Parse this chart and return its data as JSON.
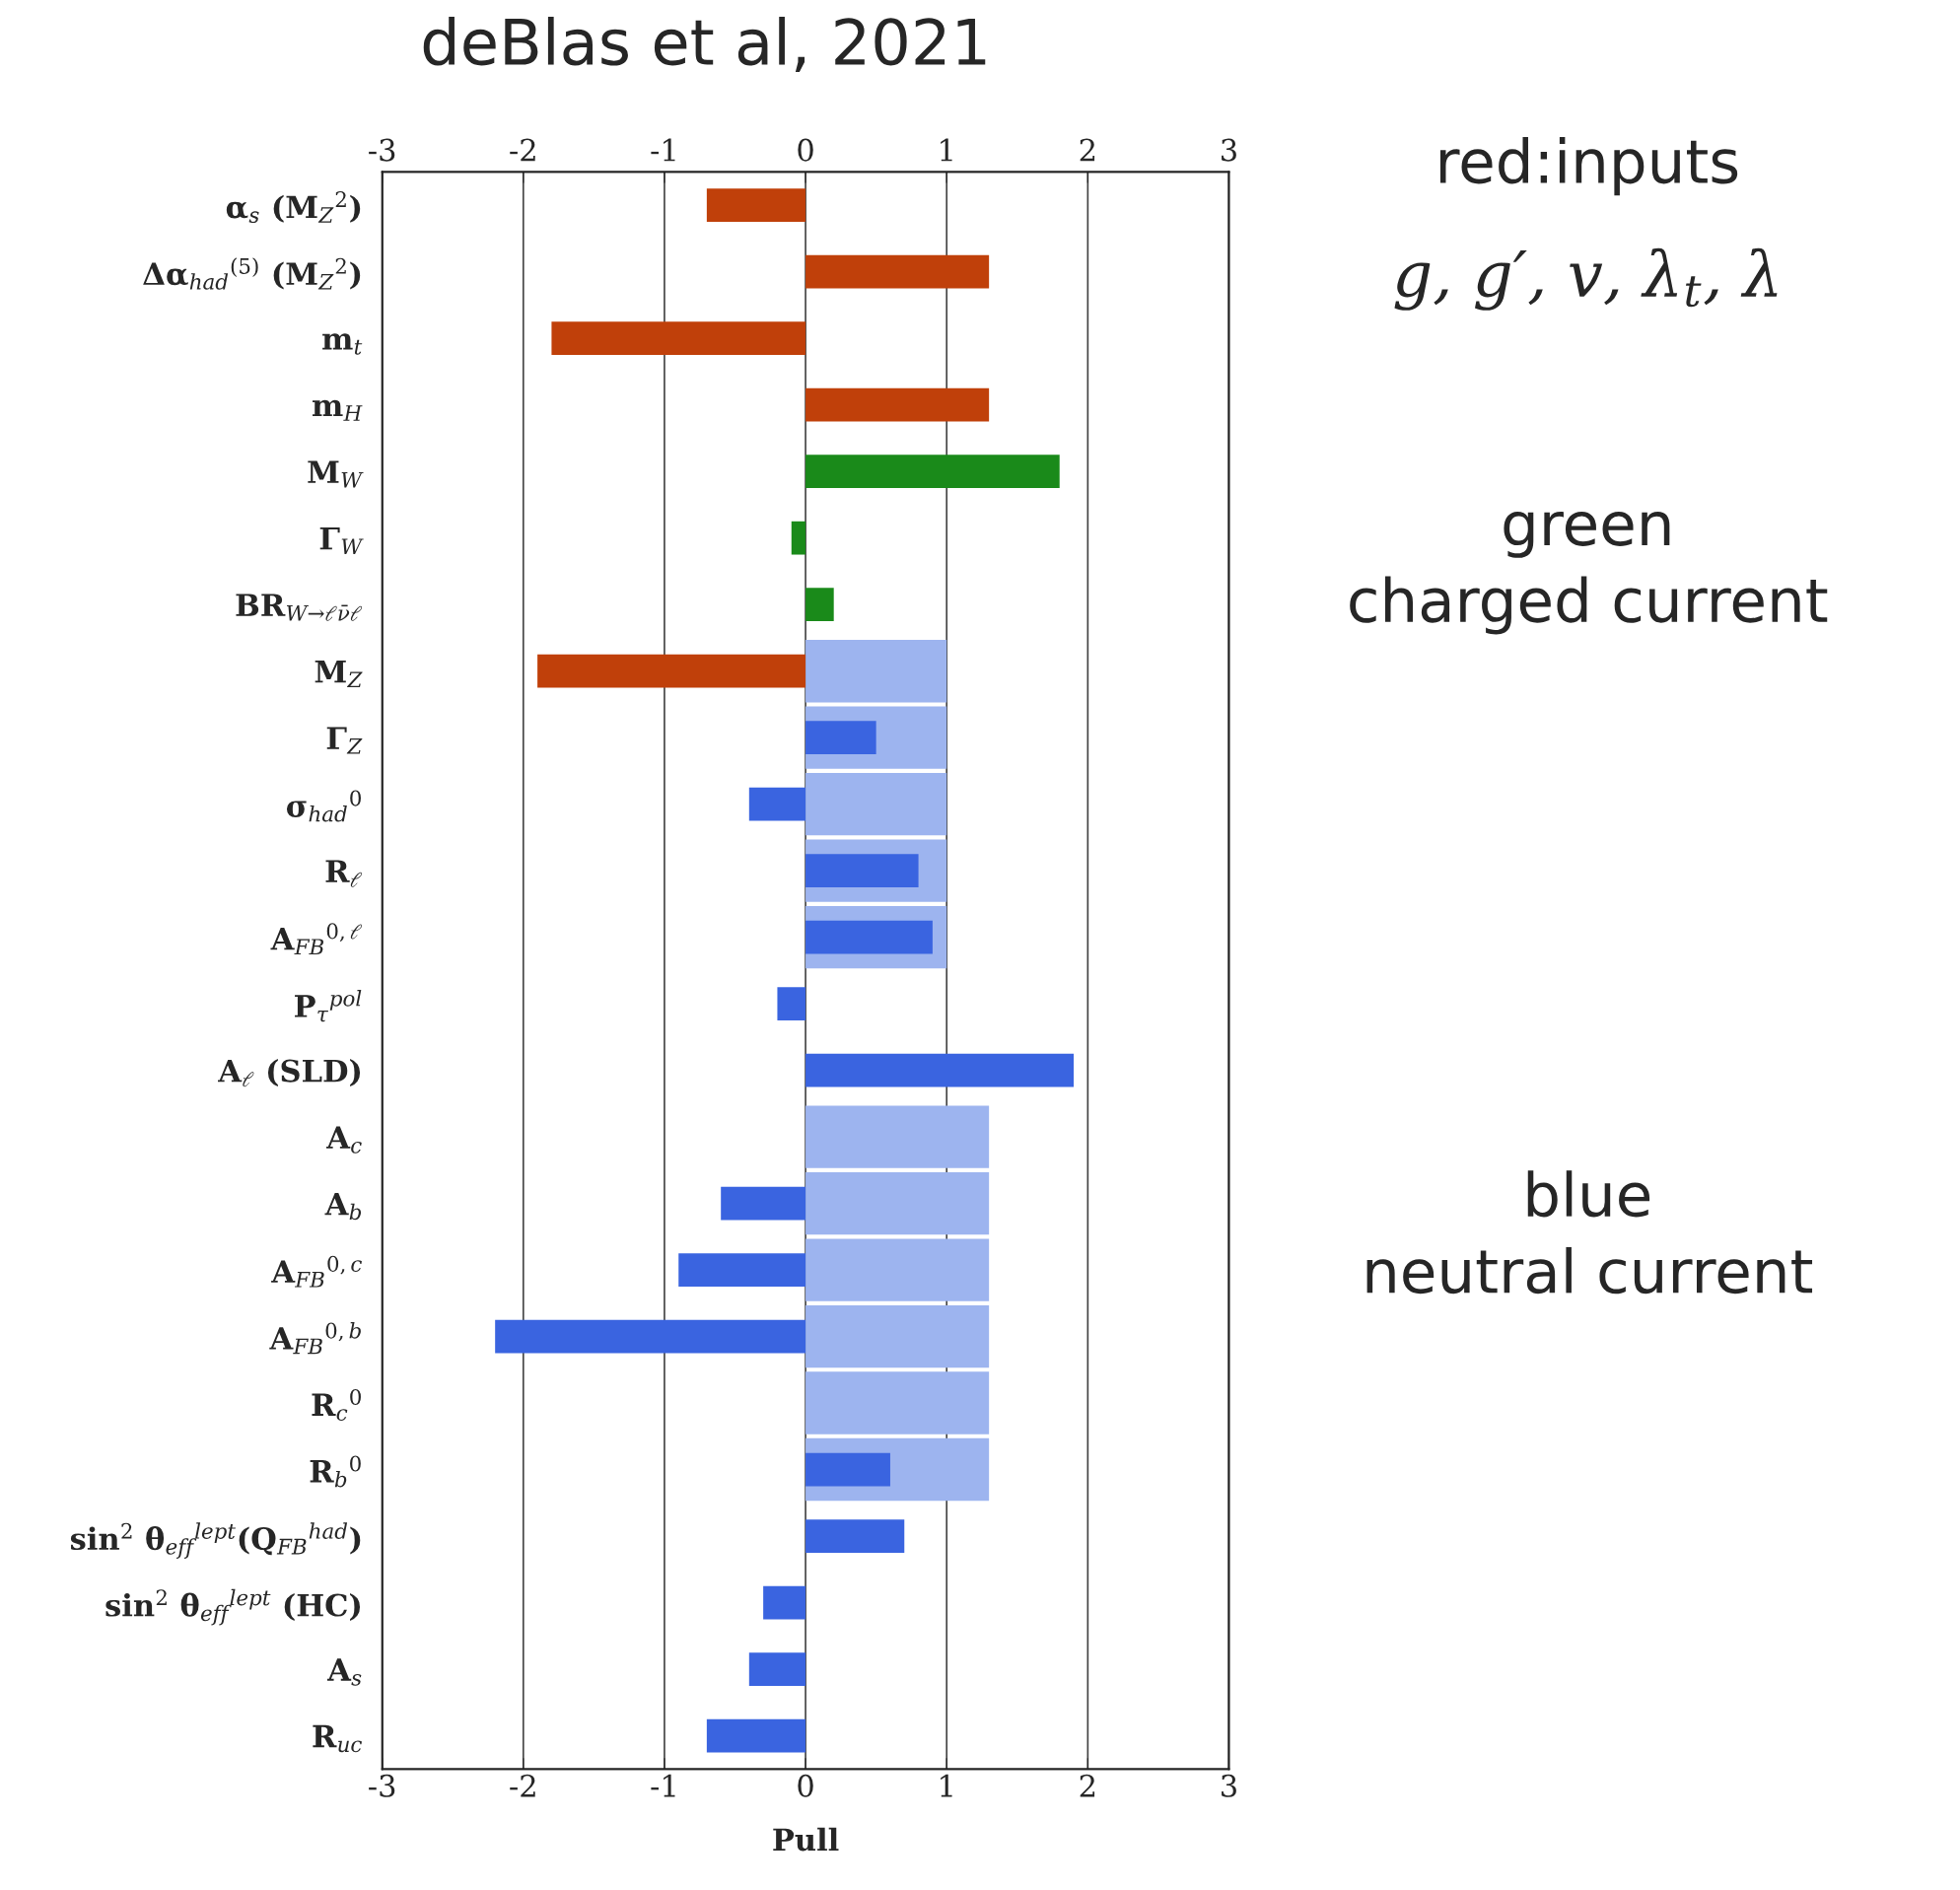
{
  "chart_data": {
    "type": "bar",
    "orientation": "horizontal",
    "title": "deBlas et al, 2021",
    "xlabel": "Pull",
    "categories": [
      "α$_{s}$ (M$_{Z}$$^{2}$)",
      "Δα$_{had}$$^{(5)}$ (M$_{Z}$$^{2}$)",
      "m$_{t}$",
      "m$_{H}$",
      "M$_{W}$",
      "Γ$_{W}$",
      "BR$_{W→ℓν̄ℓ}$",
      "M$_{Z}$",
      "Γ$_{Z}$",
      "σ$_{had}$$^{0}$",
      "R$_{ℓ}$",
      "A$_{FB}$$^{0,ℓ}$",
      "P$_{τ}$$^{pol}$",
      "A$_{ℓ}$ (SLD)",
      "A$_{c}$",
      "A$_{b}$",
      "A$_{FB}$$^{0,c}$",
      "A$_{FB}$$^{0,b}$",
      "R$_{c}$$^{0}$",
      "R$_{b}$$^{0}$",
      "sin$^{2}$ θ$_{eff}$$^{lept}$(Q$_{FB}$$^{had}$)",
      "sin$^{2}$ θ$_{eff}$$^{lept}$ (HC)",
      "A$_{s}$",
      "R$_{uc}$"
    ],
    "series": [
      {
        "color": "#9db4ef",
        "values": [
          null,
          null,
          null,
          null,
          null,
          null,
          null,
          1,
          1,
          1,
          1,
          1,
          null,
          null,
          1.3,
          1.3,
          1.3,
          1.3,
          1.3,
          1.3,
          null,
          null,
          null,
          null
        ]
      },
      {
        "colors": [
          "#c0400a",
          "#c0400a",
          "#c0400a",
          "#c0400a",
          "#1a8a1a",
          "#1a8a1a",
          "#1a8a1a",
          "#c0400a",
          "#3a64e0",
          "#3a64e0",
          "#3a64e0",
          "#3a64e0",
          "#3a64e0",
          "#3a64e0",
          "#3a64e0",
          "#3a64e0",
          "#3a64e0",
          "#3a64e0",
          "#3a64e0",
          "#3a64e0",
          "#3a64e0",
          "#3a64e0",
          "#3a64e0",
          "#3a64e0"
        ],
        "values": [
          -0.7,
          1.3,
          -1.8,
          1.3,
          1.8,
          -0.1,
          0.2,
          -1.9,
          0.5,
          -0.4,
          0.8,
          0.9,
          -0.2,
          1.9,
          0,
          -0.6,
          -0.9,
          -2.2,
          0,
          0.6,
          0.7,
          -0.3,
          -0.4,
          -0.7
        ]
      }
    ],
    "xlim": [
      -3,
      3
    ],
    "xticks": [
      -3,
      -2,
      -1,
      0,
      1,
      2,
      3
    ],
    "x2lim": [
      -3,
      3
    ],
    "x2ticks": [
      -3,
      -2,
      -1,
      0,
      1,
      2,
      3
    ],
    "grid": "x",
    "annotations": [
      "red:inputs",
      "g, g′, v, λ$_{t}$, λ",
      "green\ncharged current",
      "blue\nneutral current"
    ]
  }
}
